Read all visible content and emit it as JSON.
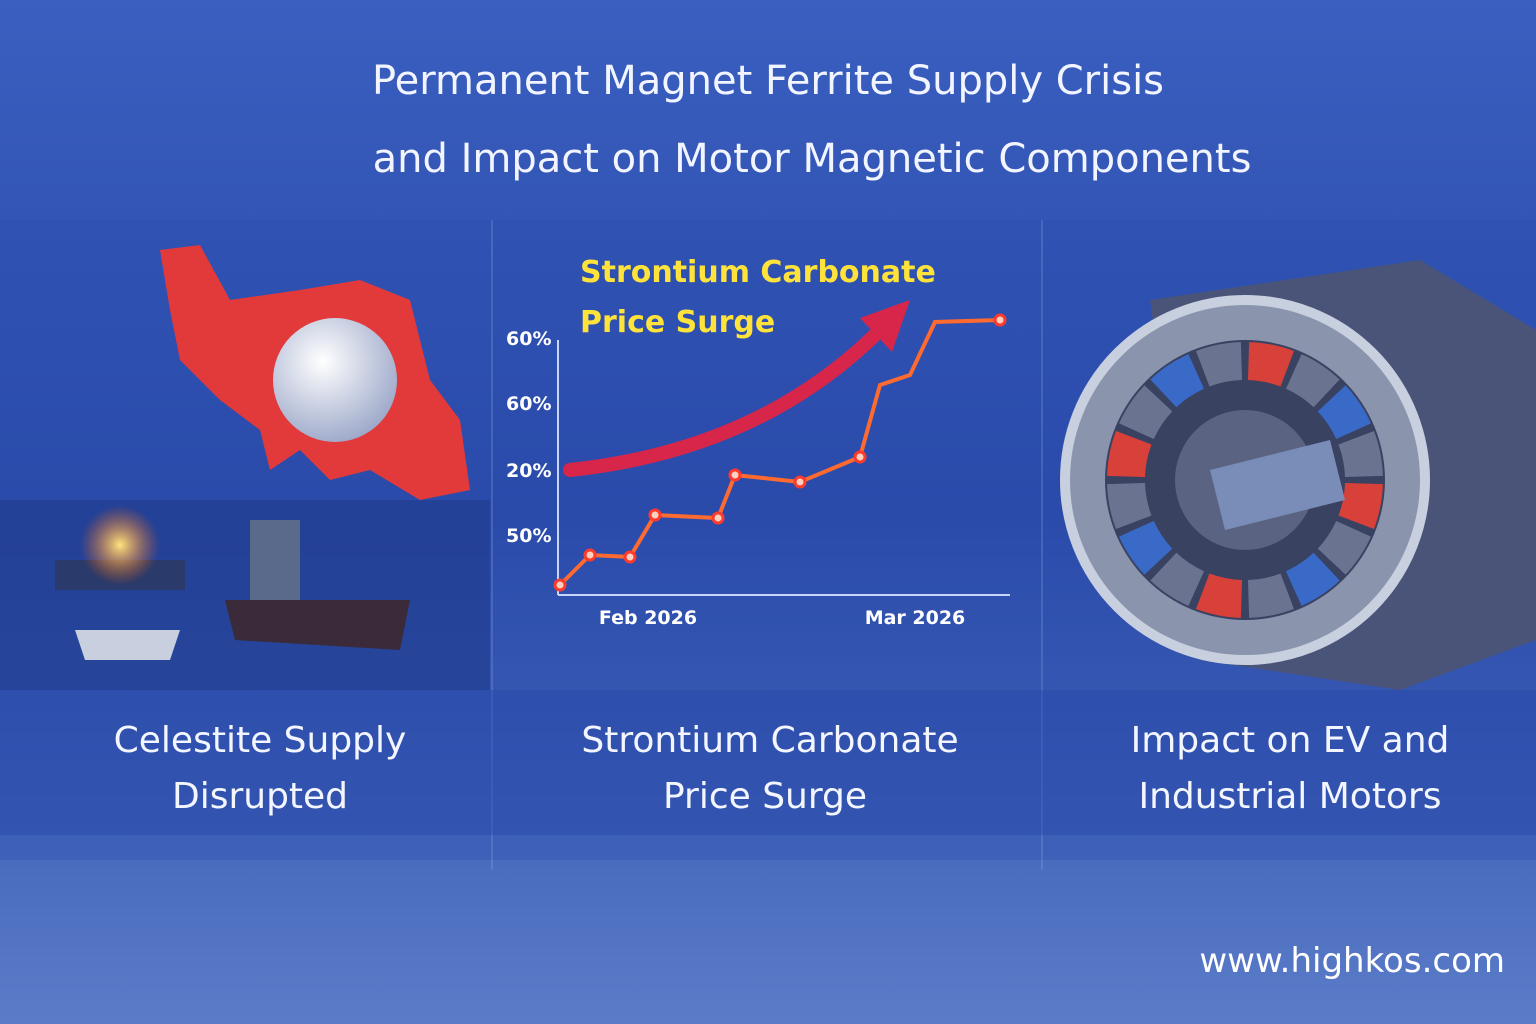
{
  "header": {
    "line1": "Permanent Magnet Ferrite Supply Crisis",
    "line2": "and Impact on Motor Magnetic Components"
  },
  "panels": [
    {
      "caption": [
        "Celestite Supply",
        "Disrupted"
      ]
    },
    {
      "chart": {
        "title": [
          "Strontium Carbonate",
          "Price Surge"
        ],
        "y_labels": [
          "60%",
          "60%",
          "20%",
          "50%"
        ],
        "x_labels": [
          "Feb 2026",
          "Mar 2026"
        ]
      },
      "caption": [
        "Strontium Carbonate",
        "Price Surge"
      ]
    },
    {
      "caption": [
        "Impact on EV and",
        "Industrial Motors"
      ]
    }
  ],
  "footer": "www.highkos.com"
}
